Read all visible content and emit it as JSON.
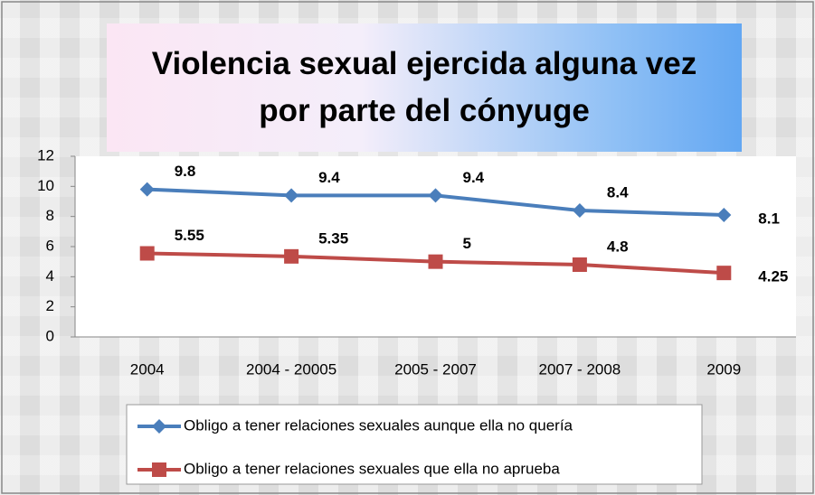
{
  "chart_data": {
    "type": "line",
    "title": "Violencia sexual ejercida alguna vez por parte del cónyuge",
    "categories": [
      "2004",
      "2004 - 20005",
      "2005 - 2007",
      "2007 - 2008",
      "2009"
    ],
    "series": [
      {
        "name": "Obligo a tener relaciones sexuales aunque ella no quería",
        "color": "#4a7ebb",
        "marker": "diamond",
        "values": [
          9.8,
          9.4,
          9.4,
          8.4,
          8.1
        ]
      },
      {
        "name": "Obligo a tener relaciones sexuales que ella no aprueba",
        "color": "#be4b48",
        "marker": "square",
        "values": [
          5.55,
          5.35,
          5,
          4.8,
          4.25
        ]
      }
    ],
    "ylim": [
      0,
      12
    ],
    "yticks": [
      0,
      2,
      4,
      6,
      8,
      10,
      12
    ],
    "grid": false,
    "legend": "bottom"
  }
}
